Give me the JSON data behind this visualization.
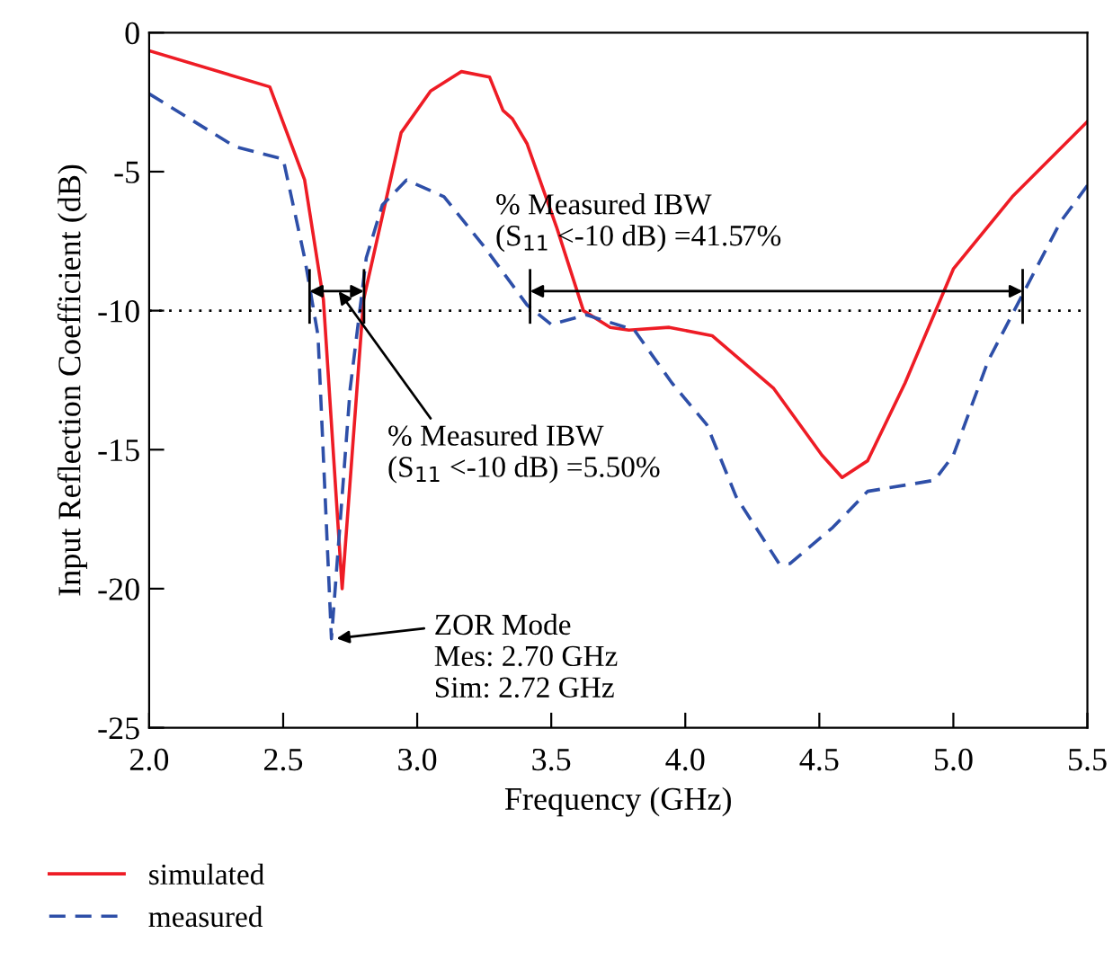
{
  "chart_data": {
    "type": "line",
    "xlabel": "Frequency (GHz)",
    "ylabel": "Input Reflection Coefficient (dB)",
    "xlim": [
      2.0,
      5.5
    ],
    "xticks": [
      {
        "value": 2,
        "label": "2.0"
      },
      2.5,
      {
        "value": 3,
        "label": "3.0"
      },
      3.5,
      {
        "value": 4,
        "label": "4.0"
      },
      4.5,
      {
        "value": 5,
        "label": "5.0"
      },
      5.5
    ],
    "ylim": [
      -25,
      0
    ],
    "yticks": [
      0,
      -5,
      -10,
      -15,
      -20,
      -25
    ],
    "grid": false,
    "legend": "bottom left",
    "marker": "none",
    "series": [
      {
        "name": "simulated",
        "color": "#ee1c25",
        "line_style": "solid",
        "x": [
          2.0,
          2.45,
          2.58,
          2.65,
          2.72,
          2.8,
          2.94,
          3.05,
          3.165,
          3.27,
          3.32,
          3.355,
          3.41,
          3.52,
          3.62,
          3.72,
          3.79,
          3.94,
          4.1,
          4.33,
          4.51,
          4.585,
          4.68,
          4.82,
          5.0,
          5.22,
          5.5
        ],
        "values": [
          -0.65,
          -1.95,
          -5.3,
          -9.6,
          -20.0,
          -9.6,
          -3.6,
          -2.1,
          -1.4,
          -1.6,
          -2.8,
          -3.1,
          -4.0,
          -7.0,
          -10.0,
          -10.6,
          -10.7,
          -10.6,
          -10.9,
          -12.8,
          -15.2,
          -16.0,
          -15.4,
          -12.6,
          -8.5,
          -5.9,
          -3.2
        ]
      },
      {
        "name": "measured",
        "color": "#2e4fa8",
        "line_style": "dashed",
        "x": [
          2.0,
          2.32,
          2.5,
          2.58,
          2.63,
          2.68,
          2.75,
          2.81,
          2.87,
          2.96,
          3.1,
          3.25,
          3.41,
          3.5,
          3.63,
          3.81,
          3.95,
          4.08,
          4.19,
          4.35,
          4.39,
          4.55,
          4.68,
          4.93,
          5.0,
          5.13,
          5.27,
          5.4,
          5.5
        ],
        "values": [
          -2.2,
          -4.1,
          -4.55,
          -8.1,
          -10.9,
          -21.8,
          -12.8,
          -8.1,
          -6.2,
          -5.3,
          -5.9,
          -7.7,
          -9.8,
          -10.5,
          -10.15,
          -10.7,
          -12.6,
          -14.1,
          -16.7,
          -19.1,
          -19.1,
          -17.8,
          -16.5,
          -16.1,
          -15.2,
          -11.8,
          -9.2,
          -6.8,
          -5.5
        ]
      }
    ],
    "ref_lines": [
      {
        "axis": "y",
        "value": -10,
        "color": "#000000",
        "line_style": "dotted"
      }
    ],
    "annotations": [
      "% Measured IBW\n(S$_{11}$ <-10 dB) =5.50%",
      "% Measured IBW\n(S$_{11}$ <-10 dB) =41.57%",
      {
        "text": "ZOR Mode\nMes: 2.70 GHz\nSim: 2.72 GHz",
        "x": 2.69,
        "y": -21.8
      }
    ]
  }
}
